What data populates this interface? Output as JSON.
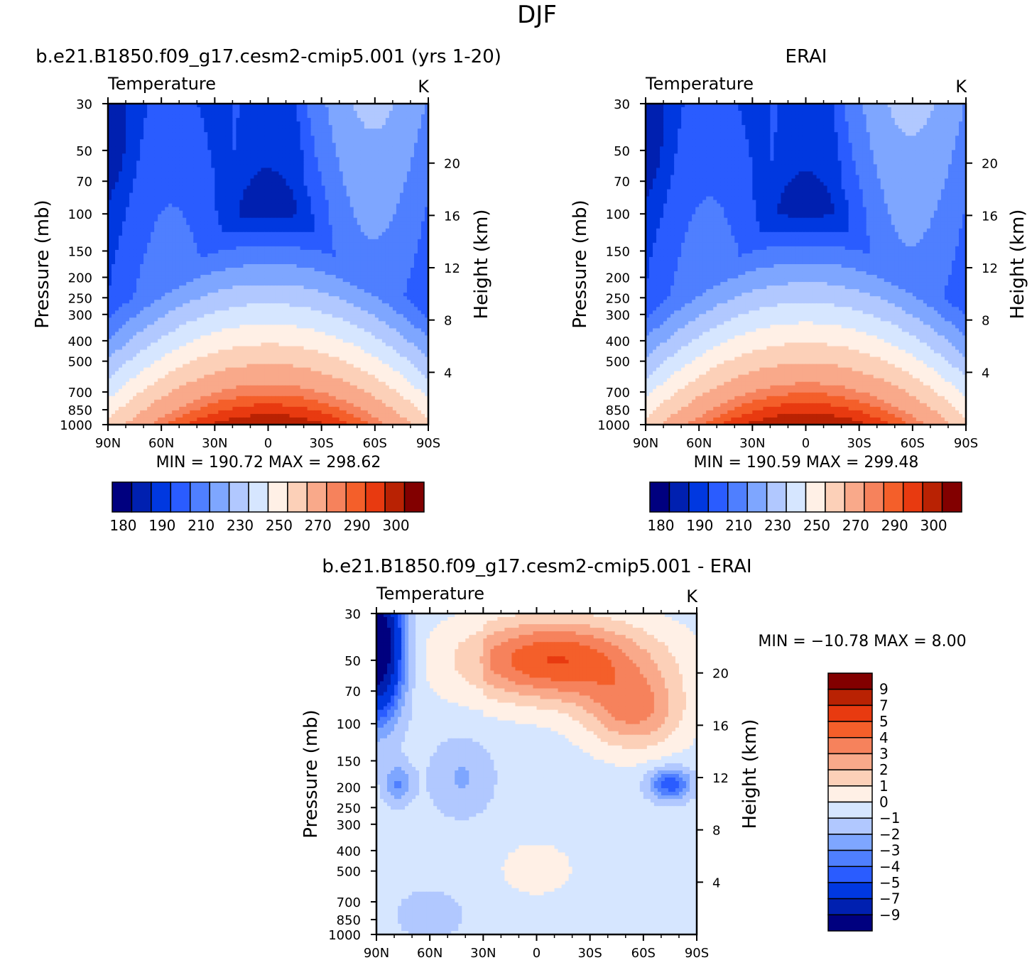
{
  "figure_title": "DJF",
  "chart_data": [
    {
      "type": "heatmap",
      "title": "b.e21.B1850.f09_g17.cesm2-cmip5.001 (yrs 1-20)",
      "subtitle_left": "Temperature",
      "subtitle_right": "K",
      "xlabel": "",
      "ylabel": "Pressure (mb)",
      "ylabel_right": "Height (km)",
      "x_ticks": [
        "90N",
        "60N",
        "30N",
        "0",
        "30S",
        "60S",
        "90S"
      ],
      "y_ticks": [
        "30",
        "50",
        "70",
        "100",
        "150",
        "200",
        "250",
        "300",
        "400",
        "500",
        "700",
        "850",
        "1000"
      ],
      "y_right_ticks": [
        "20",
        "16",
        "12",
        "8",
        "4"
      ],
      "stats": "MIN = 190.72   MAX = 298.62",
      "colorbar_labels": [
        "180",
        "190",
        "210",
        "230",
        "250",
        "270",
        "290",
        "300"
      ],
      "cold_pool_lat": 0,
      "cold_pool_p": 100,
      "surface_max": 298.62,
      "strat_min": 190.72
    },
    {
      "type": "heatmap",
      "title": "ERAI",
      "subtitle_left": "Temperature",
      "subtitle_right": "K",
      "xlabel": "",
      "ylabel": "Pressure (mb)",
      "ylabel_right": "Height (km)",
      "x_ticks": [
        "90N",
        "60N",
        "30N",
        "0",
        "30S",
        "60S",
        "90S"
      ],
      "y_ticks": [
        "30",
        "50",
        "70",
        "100",
        "150",
        "200",
        "250",
        "300",
        "400",
        "500",
        "700",
        "850",
        "1000"
      ],
      "y_right_ticks": [
        "20",
        "16",
        "12",
        "8",
        "4"
      ],
      "stats": "MIN = 190.59   MAX = 299.48",
      "colorbar_labels": [
        "180",
        "190",
        "210",
        "230",
        "250",
        "270",
        "290",
        "300"
      ],
      "surface_max": 299.48,
      "strat_min": 190.59
    },
    {
      "type": "heatmap",
      "title": "b.e21.B1850.f09_g17.cesm2-cmip5.001 - ERAI",
      "subtitle_left": "Temperature",
      "subtitle_right": "K",
      "xlabel": "",
      "ylabel": "Pressure (mb)",
      "ylabel_right": "Height (km)",
      "x_ticks": [
        "90N",
        "60N",
        "30N",
        "0",
        "30S",
        "60S",
        "90S"
      ],
      "y_ticks": [
        "30",
        "50",
        "70",
        "100",
        "150",
        "200",
        "250",
        "300",
        "400",
        "500",
        "700",
        "850",
        "1000"
      ],
      "y_right_ticks": [
        "20",
        "16",
        "12",
        "8",
        "4"
      ],
      "stats": "MIN = −10.78   MAX =    8.00",
      "colorbar_labels": [
        "9",
        "7",
        "5",
        "4",
        "3",
        "2",
        "1",
        "0",
        "−1",
        "−2",
        "−3",
        "−4",
        "−5",
        "−7",
        "−9"
      ],
      "min": -10.78,
      "max": 8.0
    }
  ],
  "palette_temp": [
    "#00007f",
    "#0020b0",
    "#0038e0",
    "#2a5cff",
    "#4f7fff",
    "#7ea6ff",
    "#b1c8ff",
    "#d6e6ff",
    "#fff0e6",
    "#fcd0b8",
    "#f9a98a",
    "#f6825c",
    "#f45f2a",
    "#e83a10",
    "#b92203",
    "#820000"
  ],
  "palette_diff": [
    "#820000",
    "#b92203",
    "#e83a10",
    "#f45f2a",
    "#f6825c",
    "#f9a98a",
    "#fcd0b8",
    "#fff0e6",
    "#d6e6ff",
    "#b1c8ff",
    "#7ea6ff",
    "#4f7fff",
    "#2a5cff",
    "#0038e0",
    "#0020b0",
    "#00007f"
  ]
}
